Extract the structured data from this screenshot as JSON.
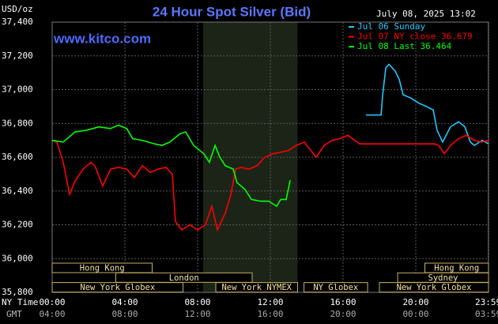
{
  "chart_data": {
    "type": "line",
    "title": "24 Hour Spot Silver (Bid)",
    "unit": "USD/oz",
    "timestamp": "July 08, 2025 13:02",
    "site": "www.kitco.com",
    "x_label": "NY Time",
    "x2_label": "GMT",
    "xlim": [
      0,
      24
    ],
    "ylim": [
      35.8,
      37.4
    ],
    "yticks": [
      {
        "value": 37.4,
        "label": "37,400"
      },
      {
        "value": 37.2,
        "label": "37,200"
      },
      {
        "value": 37.0,
        "label": "37,000"
      },
      {
        "value": 36.8,
        "label": "36,800"
      },
      {
        "value": 36.6,
        "label": "36,600"
      },
      {
        "value": 36.4,
        "label": "36,400"
      },
      {
        "value": 36.2,
        "label": "36,200"
      },
      {
        "value": 36.0,
        "label": "36,000"
      },
      {
        "value": 35.8,
        "label": "35,800"
      }
    ],
    "xticks": [
      {
        "value": 0,
        "label": "00:00"
      },
      {
        "value": 4,
        "label": "04:00"
      },
      {
        "value": 8,
        "label": "08:00"
      },
      {
        "value": 12,
        "label": "12:00"
      },
      {
        "value": 16,
        "label": "16:00"
      },
      {
        "value": 20,
        "label": "20:00"
      },
      {
        "value": 23.98,
        "label": "23:59"
      }
    ],
    "gmt_labels": [
      "04:00",
      "08:00",
      "12:00",
      "16:00",
      "20:00",
      "00:00",
      "03:59"
    ],
    "grid": true,
    "sessions": [
      "Hong Kong",
      "Hong Kong",
      "London",
      "Sydney",
      "New York Globex",
      "New York NYMEX",
      "NY Globex",
      "New York Globex"
    ],
    "series": [
      {
        "name": "Jul 06 Sunday",
        "color": "#1ec8ff",
        "x": [
          17.26,
          18.09,
          18.17,
          18.35,
          18.52,
          18.87,
          19.09,
          19.3,
          19.74,
          20.17,
          20.6,
          20.96,
          21.17,
          21.48,
          21.91,
          22.35,
          22.7,
          23.0,
          23.22,
          23.65,
          24
        ],
        "values": [
          36.85,
          36.85,
          36.96,
          37.13,
          37.15,
          37.11,
          37.06,
          36.97,
          36.95,
          36.92,
          36.9,
          36.88,
          36.76,
          36.69,
          36.78,
          36.81,
          36.78,
          36.69,
          36.67,
          36.7,
          36.68
        ]
      },
      {
        "name": "Jul 07 NY close 36.679",
        "color": "#ff0000",
        "x": [
          0,
          0.26,
          0.61,
          0.96,
          1.26,
          1.7,
          2.13,
          2.35,
          2.78,
          3.22,
          3.65,
          4.09,
          4.52,
          4.96,
          5.39,
          5.83,
          6.26,
          6.61,
          6.78,
          7.13,
          7.57,
          8.0,
          8.43,
          8.78,
          9.09,
          9.52,
          9.83,
          10.09,
          10.39,
          10.83,
          11.26,
          11.7,
          12.13,
          12.57,
          13.0,
          13.43,
          13.87,
          14.3,
          14.52,
          14.96,
          15.39,
          15.83,
          16.26,
          16.91,
          21.04,
          21.26,
          21.57,
          21.91,
          22.35,
          22.78,
          23.22,
          23.65,
          24
        ],
        "values": [
          36.7,
          36.69,
          36.57,
          36.38,
          36.46,
          36.53,
          36.57,
          36.55,
          36.43,
          36.53,
          36.54,
          36.53,
          36.48,
          36.55,
          36.51,
          36.53,
          36.54,
          36.5,
          36.22,
          36.17,
          36.2,
          36.17,
          36.2,
          36.31,
          36.17,
          36.27,
          36.38,
          36.53,
          36.54,
          36.53,
          36.55,
          36.6,
          36.62,
          36.63,
          36.64,
          36.67,
          36.69,
          36.63,
          36.6,
          36.67,
          36.7,
          36.71,
          36.73,
          36.679,
          36.679,
          36.67,
          36.62,
          36.67,
          36.71,
          36.73,
          36.7,
          36.69,
          36.7
        ]
      },
      {
        "name": "Jul 08 Last 36.464",
        "color": "#00ff00",
        "x": [
          0,
          0.6,
          1.26,
          1.9,
          2.57,
          3.2,
          3.65,
          4.1,
          4.43,
          4.96,
          5.6,
          6.04,
          6.48,
          7.04,
          7.35,
          7.78,
          8.35,
          8.65,
          8.96,
          9.22,
          9.52,
          9.96,
          10.17,
          10.6,
          10.96,
          11.48,
          11.91,
          12.35,
          12.57,
          12.87,
          13.09
        ],
        "values": [
          36.7,
          36.69,
          36.75,
          36.76,
          36.78,
          36.77,
          36.79,
          36.77,
          36.71,
          36.7,
          36.68,
          36.67,
          36.69,
          36.74,
          36.75,
          36.67,
          36.62,
          36.57,
          36.67,
          36.6,
          36.55,
          36.53,
          36.45,
          36.41,
          36.35,
          36.34,
          36.34,
          36.31,
          36.35,
          36.35,
          36.464
        ]
      }
    ]
  }
}
